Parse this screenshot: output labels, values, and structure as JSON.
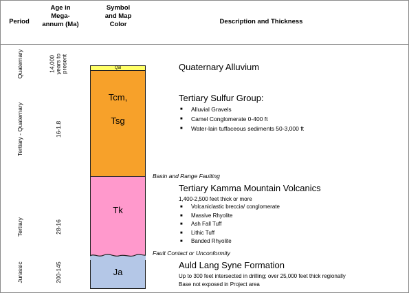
{
  "header": {
    "period": "Period",
    "age": [
      "Age in",
      "Mega-",
      "annum (Ma)"
    ],
    "symbol": [
      "Symbol",
      "and Map",
      "Color"
    ],
    "description": "Description and Thickness"
  },
  "periods": {
    "quaternary": "Quaternary",
    "tertiary_quaternary": "Tertiary - Quaternary",
    "tertiary": "Tertiary",
    "jurassic": "Jurassic"
  },
  "ages": {
    "quaternary": "14,000 years to present",
    "tertiary_quaternary": "16-1.8",
    "tertiary": "28-16",
    "jurassic": "200-145"
  },
  "units": {
    "qal": {
      "symbol": "Qal",
      "color": "#ffff66"
    },
    "tcm": {
      "symbol1": "Tcm,",
      "symbol2": "Tsg",
      "color": "#f7a12a"
    },
    "tk": {
      "symbol": "Tk",
      "color": "#ff99cc"
    },
    "ja": {
      "symbol": "Ja",
      "color": "#b4c7e7"
    }
  },
  "descriptions": {
    "qal_title": "Quaternary Alluvium",
    "tsg_title": "Tertiary Sulfur Group:",
    "tsg_items": [
      "Alluvial Gravels",
      "Camel Conglomerate 0-400 ft",
      "Water-lain tuffaceous sediments 50-3,000 ft"
    ],
    "basin_range": "Basin and Range Faulting",
    "tk_title": "Tertiary Kamma Mountain Volcanics",
    "tk_thickness": "1,400-2,500 feet thick or more",
    "tk_items": [
      "Volcaniclastic breccia/ conglomerate",
      "Massive Rhyolite",
      "Ash Fall Tuff",
      "Lithic Tuff",
      "Banded Rhyolite"
    ],
    "fault_contact": "Fault Contact or Unconformity",
    "ja_title": "Auld Lang Syne Formation",
    "ja_note1": "Up to 300 feet intersected in drilling; over 25,000 feet thick regionally",
    "ja_note2": "Base not exposed in Project area"
  }
}
